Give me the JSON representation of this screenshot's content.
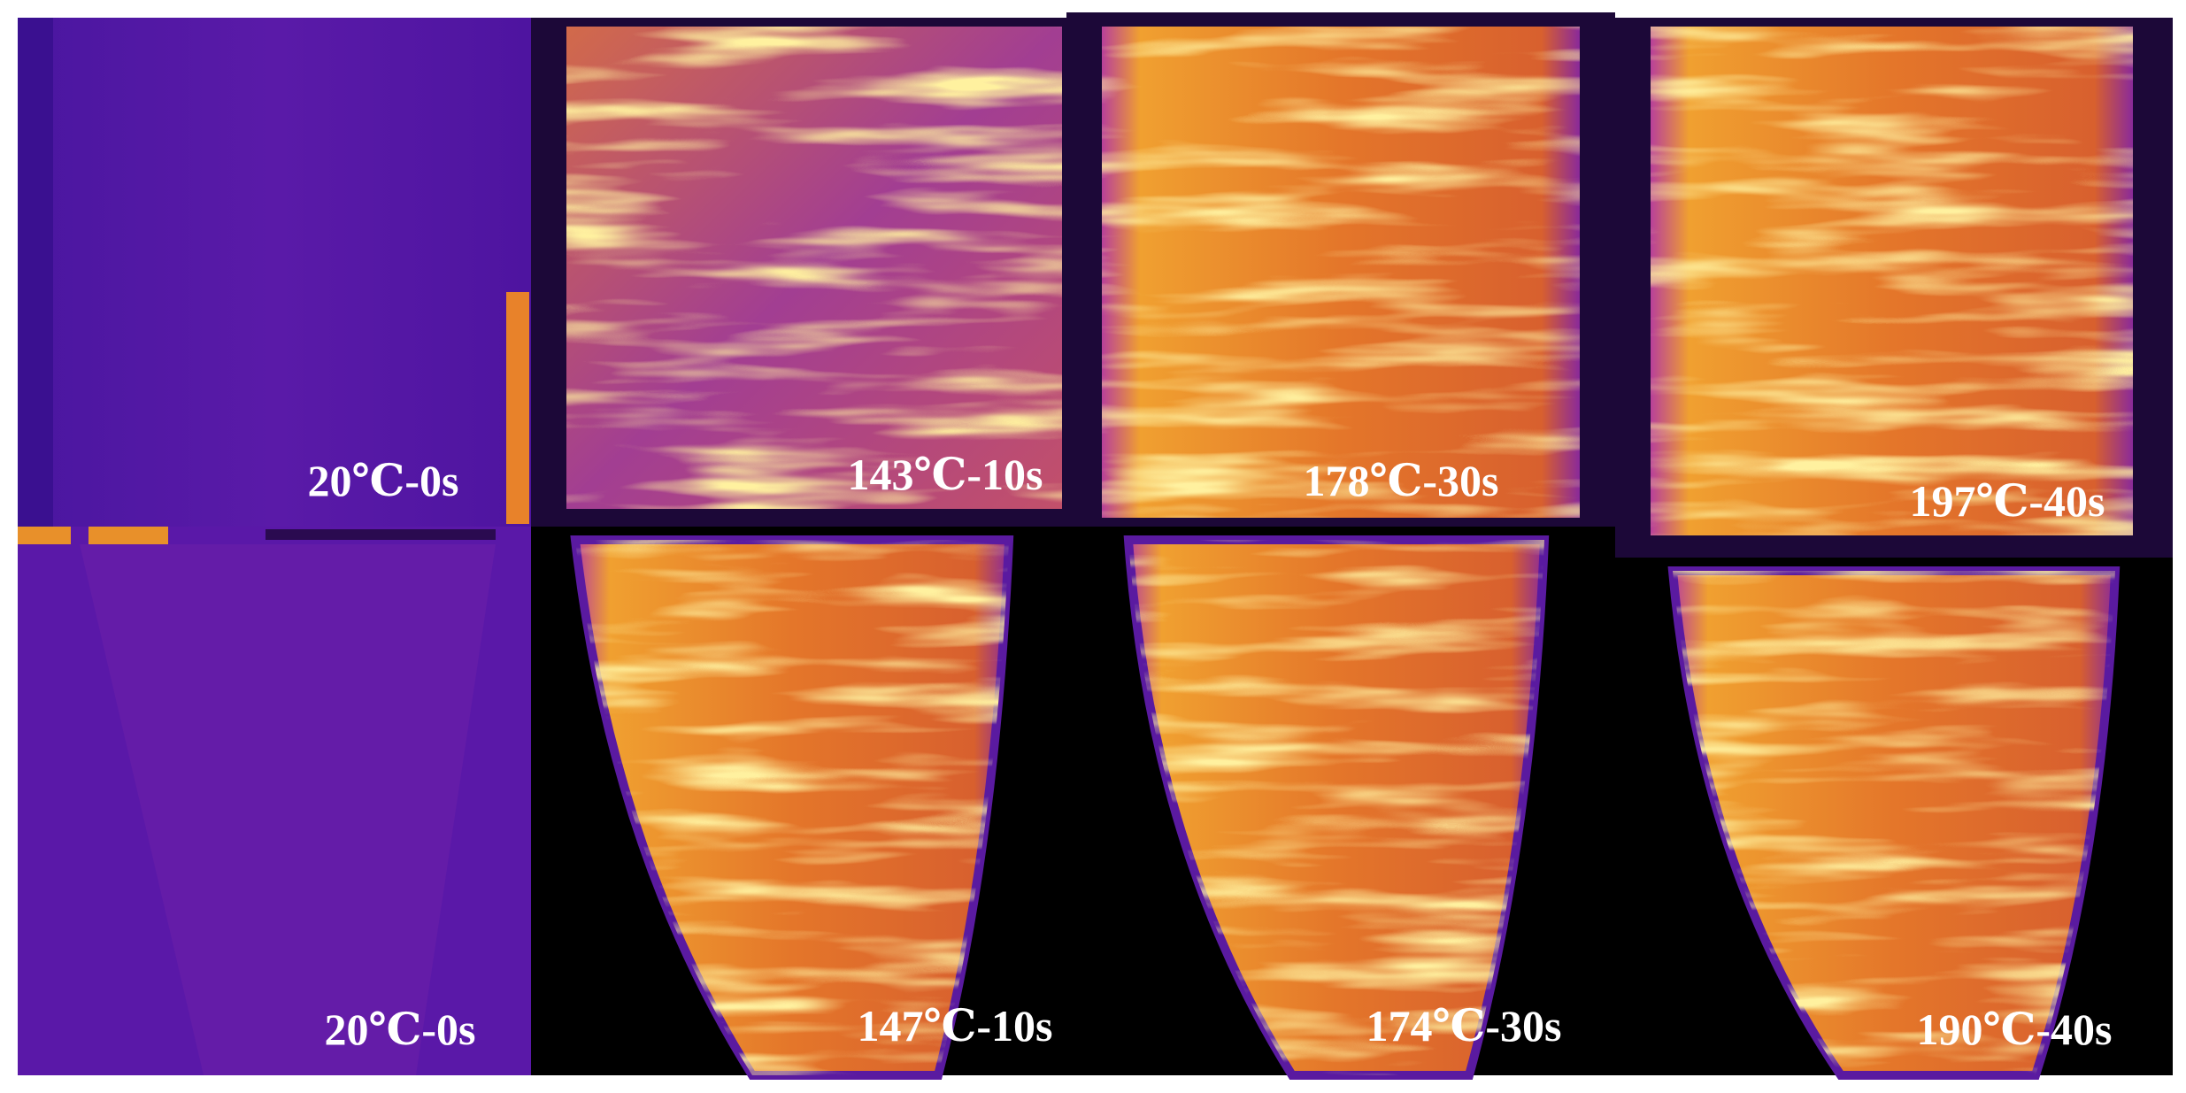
{
  "panels": [
    {
      "label": "20℃-0s"
    },
    {
      "label": "143℃-10s"
    },
    {
      "label": "178℃-30s"
    },
    {
      "label": "197℃-40s"
    },
    {
      "label": "20℃-0s"
    },
    {
      "label": "147℃-10s"
    },
    {
      "label": "174℃-30s"
    },
    {
      "label": "190℃-40s"
    }
  ]
}
